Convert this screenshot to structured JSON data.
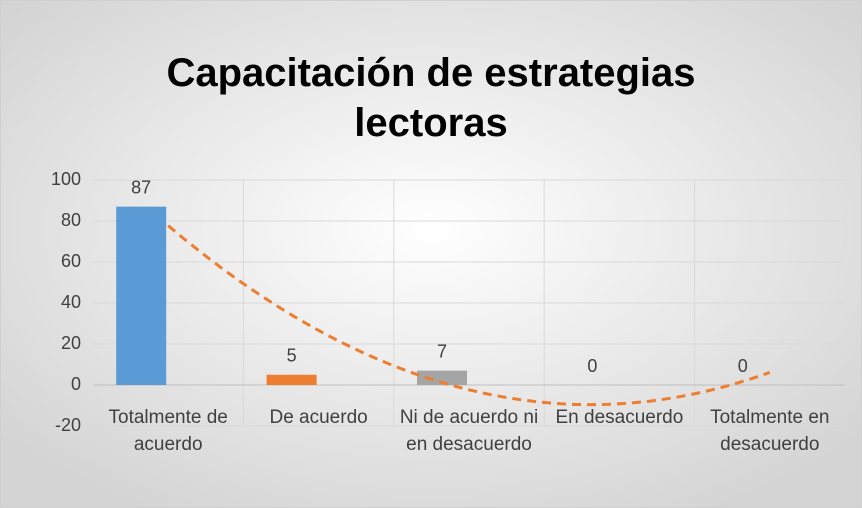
{
  "chart_data": {
    "type": "bar",
    "title": "Capacitación de estrategias lectoras",
    "categories": [
      "Totalmente de acuerdo",
      "De acuerdo",
      "Ni de acuerdo ni en desacuerdo",
      "En desacuerdo",
      "Totalmente en desacuerdo"
    ],
    "values": [
      87,
      5,
      7,
      0,
      0
    ],
    "colors": [
      "#5b9bd5",
      "#ed7d31",
      "#a5a5a5",
      "#ffc000",
      "#4472c4"
    ],
    "ylim": [
      -20,
      100
    ],
    "yticks": [
      -20,
      0,
      20,
      40,
      60,
      80,
      100
    ],
    "grid": true,
    "trendline": {
      "type": "polynomial",
      "order": 2,
      "color": "#ed7d31"
    }
  }
}
